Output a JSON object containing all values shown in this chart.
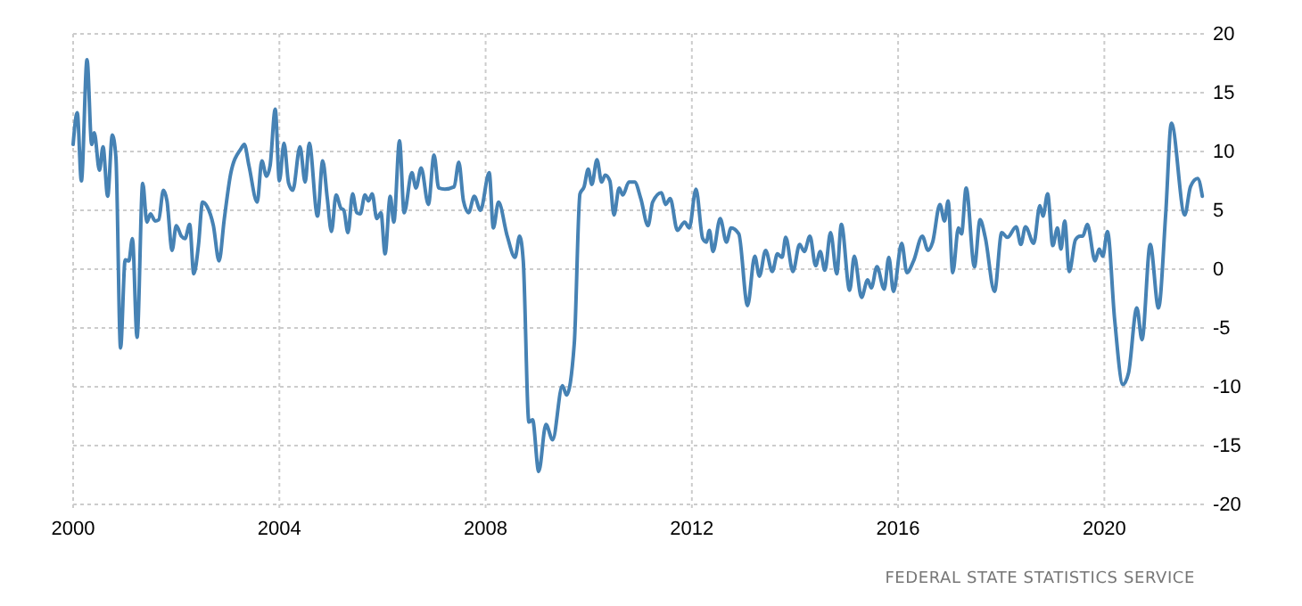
{
  "chart_data": {
    "type": "line",
    "x": [
      2000.0,
      2000.08,
      2000.16,
      2000.27,
      2000.36,
      2000.41,
      2000.51,
      2000.58,
      2000.67,
      2000.76,
      2000.83,
      2000.92,
      2001.01,
      2001.08,
      2001.15,
      2001.24,
      2001.35,
      2001.43,
      2001.5,
      2001.59,
      2001.66,
      2001.75,
      2001.82,
      2001.92,
      2002.0,
      2002.1,
      2002.17,
      2002.26,
      2002.34,
      2002.43,
      2002.51,
      2002.6,
      2002.72,
      2002.83,
      2002.93,
      2003.06,
      2003.25,
      2003.32,
      2003.41,
      2003.57,
      2003.66,
      2003.75,
      2003.82,
      2003.92,
      2004.0,
      2004.09,
      2004.18,
      2004.26,
      2004.4,
      2004.5,
      2004.58,
      2004.74,
      2004.84,
      2004.93,
      2005.01,
      2005.1,
      2005.19,
      2005.25,
      2005.33,
      2005.42,
      2005.5,
      2005.57,
      2005.66,
      2005.73,
      2005.8,
      2005.89,
      2005.97,
      2006.05,
      2006.15,
      2006.22,
      2006.33,
      2006.42,
      2006.57,
      2006.65,
      2006.75,
      2006.89,
      2007.0,
      2007.09,
      2007.21,
      2007.39,
      2007.48,
      2007.57,
      2007.67,
      2007.78,
      2007.9,
      2008.07,
      2008.15,
      2008.25,
      2008.42,
      2008.57,
      2008.66,
      2008.73,
      2008.84,
      2008.91,
      2009.03,
      2009.17,
      2009.3,
      2009.49,
      2009.57,
      2009.72,
      2009.83,
      2009.91,
      2009.99,
      2010.06,
      2010.16,
      2010.25,
      2010.32,
      2010.41,
      2010.49,
      2010.59,
      2010.66,
      2010.78,
      2010.89,
      2011.01,
      2011.15,
      2011.24,
      2011.41,
      2011.49,
      2011.58,
      2011.72,
      2011.86,
      2011.95,
      2012.08,
      2012.21,
      2012.28,
      2012.34,
      2012.41,
      2012.55,
      2012.67,
      2012.76,
      2012.91,
      2013.08,
      2013.22,
      2013.31,
      2013.43,
      2013.56,
      2013.66,
      2013.75,
      2013.82,
      2013.96,
      2014.09,
      2014.18,
      2014.29,
      2014.4,
      2014.49,
      2014.58,
      2014.69,
      2014.81,
      2014.9,
      2015.06,
      2015.15,
      2015.29,
      2015.41,
      2015.48,
      2015.59,
      2015.73,
      2015.82,
      2015.91,
      2016.07,
      2016.17,
      2016.3,
      2016.47,
      2016.58,
      2016.67,
      2016.81,
      2016.9,
      2016.97,
      2017.06,
      2017.17,
      2017.23,
      2017.32,
      2017.48,
      2017.59,
      2017.69,
      2017.87,
      2018.01,
      2018.12,
      2018.29,
      2018.38,
      2018.47,
      2018.63,
      2018.75,
      2018.81,
      2018.9,
      2019.0,
      2019.09,
      2019.16,
      2019.23,
      2019.32,
      2019.44,
      2019.53,
      2019.58,
      2019.67,
      2019.82,
      2019.9,
      2019.97,
      2020.06,
      2020.2,
      2020.36,
      2020.47,
      2020.63,
      2020.73,
      2020.89,
      2021.05,
      2021.19,
      2021.3,
      2021.56,
      2021.67,
      2021.81,
      2021.9
    ],
    "series": [
      {
        "color": "#4682b4",
        "values": [
          10.6,
          13.3,
          7.5,
          17.8,
          10.6,
          11.6,
          8.4,
          10.4,
          6.2,
          11.4,
          9.5,
          -6.7,
          0.8,
          0.7,
          2.6,
          -5.8,
          7.3,
          4.0,
          4.7,
          4.1,
          4.2,
          6.7,
          5.8,
          1.6,
          3.7,
          2.8,
          2.6,
          3.8,
          -0.4,
          2.0,
          5.7,
          5.3,
          3.7,
          0.7,
          4.2,
          8.2,
          10.2,
          10.6,
          8.8,
          5.7,
          9.2,
          7.9,
          8.8,
          13.6,
          7.5,
          10.7,
          7.3,
          6.7,
          10.4,
          7.4,
          10.7,
          4.5,
          9.2,
          6.0,
          3.2,
          6.3,
          5.2,
          5.0,
          3.1,
          6.4,
          4.8,
          4.7,
          6.3,
          5.8,
          6.4,
          4.3,
          4.8,
          1.3,
          6.2,
          4.0,
          10.9,
          4.8,
          8.2,
          6.9,
          8.6,
          5.5,
          9.7,
          6.9,
          6.8,
          7.0,
          9.1,
          5.8,
          4.8,
          6.2,
          5.0,
          8.2,
          3.5,
          5.7,
          2.8,
          1.0,
          2.8,
          0.7,
          -13.0,
          -12.8,
          -17.2,
          -13.2,
          -14.5,
          -9.9,
          -10.7,
          -6.3,
          6.4,
          7.0,
          8.5,
          7.2,
          9.3,
          7.4,
          8.0,
          7.5,
          4.6,
          6.9,
          6.3,
          7.4,
          7.4,
          6.0,
          3.7,
          5.7,
          6.5,
          5.5,
          6.0,
          3.3,
          4.0,
          3.5,
          6.8,
          2.6,
          2.3,
          3.3,
          1.5,
          4.3,
          2.3,
          3.5,
          3.0,
          -3.1,
          1.1,
          -0.6,
          1.6,
          -0.2,
          1.3,
          1.0,
          2.7,
          -0.2,
          2.1,
          1.5,
          2.8,
          0.3,
          1.5,
          -0.1,
          3.1,
          -0.4,
          3.8,
          -1.8,
          1.1,
          -2.4,
          -0.9,
          -1.6,
          0.2,
          -1.7,
          1.0,
          -1.9,
          2.2,
          -0.3,
          0.7,
          2.8,
          1.6,
          2.3,
          5.5,
          4.1,
          5.8,
          -0.3,
          3.5,
          3.0,
          6.9,
          0.2,
          4.2,
          2.7,
          -1.9,
          3.1,
          2.7,
          3.6,
          2.1,
          3.6,
          2.2,
          5.4,
          4.5,
          6.4,
          2.0,
          3.5,
          1.7,
          4.1,
          -0.2,
          2.5,
          2.8,
          2.8,
          3.8,
          0.7,
          1.7,
          1.1,
          3.2,
          -4.3,
          -9.8,
          -8.8,
          -3.3,
          -6.0,
          2.1,
          -3.3,
          4.7,
          12.4,
          4.6,
          7.0,
          7.7,
          6.2
        ]
      }
    ],
    "xlim": [
      2000,
      2022
    ],
    "xticks": [
      2000,
      2004,
      2008,
      2012,
      2016,
      2020
    ],
    "ylim": [
      -20,
      20
    ],
    "yticks": [
      -20,
      -15,
      -10,
      -5,
      0,
      5,
      10,
      15,
      20
    ],
    "grid": true,
    "line_style": "solid",
    "annotations": [
      "FEDERAL STATE STATISTICS SERVICE"
    ]
  }
}
